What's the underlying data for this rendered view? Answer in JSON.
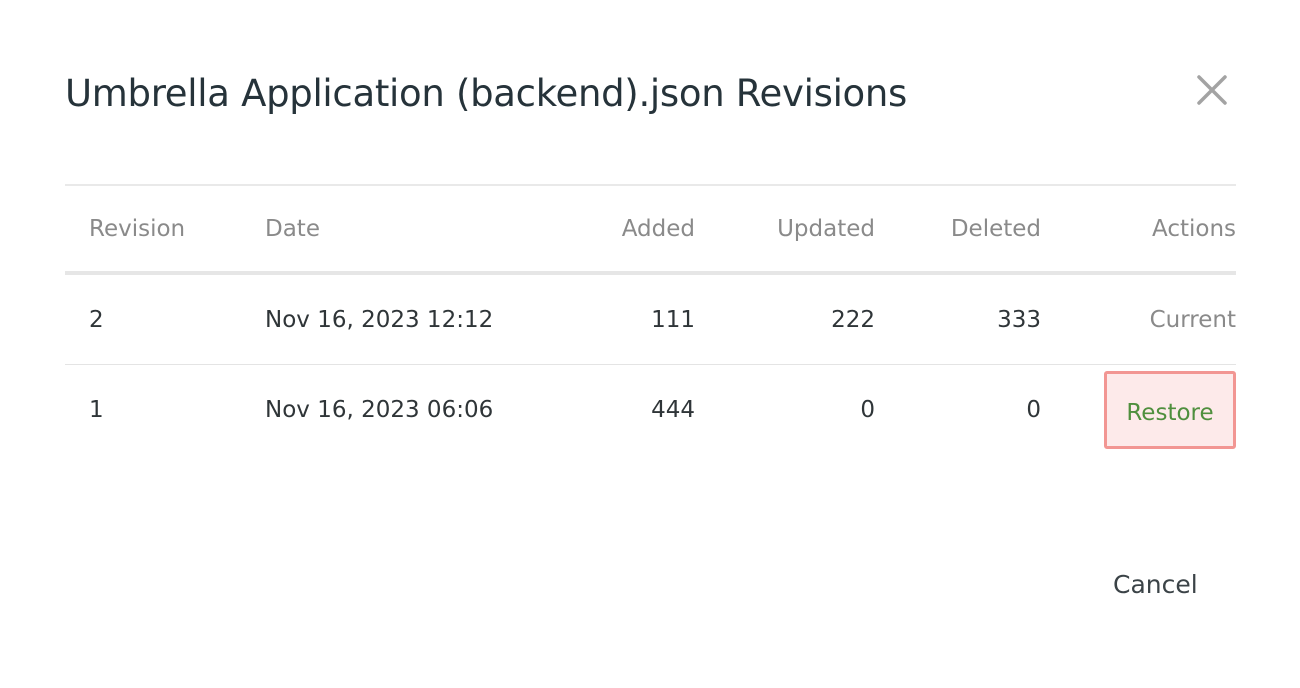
{
  "dialog": {
    "title": "Umbrella Application (backend).json Revisions",
    "close_icon": "close-x-icon",
    "cancel_label": "Cancel"
  },
  "table": {
    "headers": [
      "Revision",
      "Date",
      "Added",
      "Updated",
      "Deleted",
      "Actions"
    ],
    "rows": [
      {
        "revision": "2",
        "date": "Nov 16, 2023 12:12",
        "added": "111",
        "updated": "222",
        "deleted": "333",
        "action": "Current"
      },
      {
        "revision": "1",
        "date": "Nov 16, 2023 06:06",
        "added": "444",
        "updated": "0",
        "deleted": "0",
        "action": "Restore"
      }
    ]
  },
  "colors": {
    "restore_text": "#4f8f3e",
    "restore_bg": "#fdeaea",
    "restore_border": "#f29693"
  }
}
